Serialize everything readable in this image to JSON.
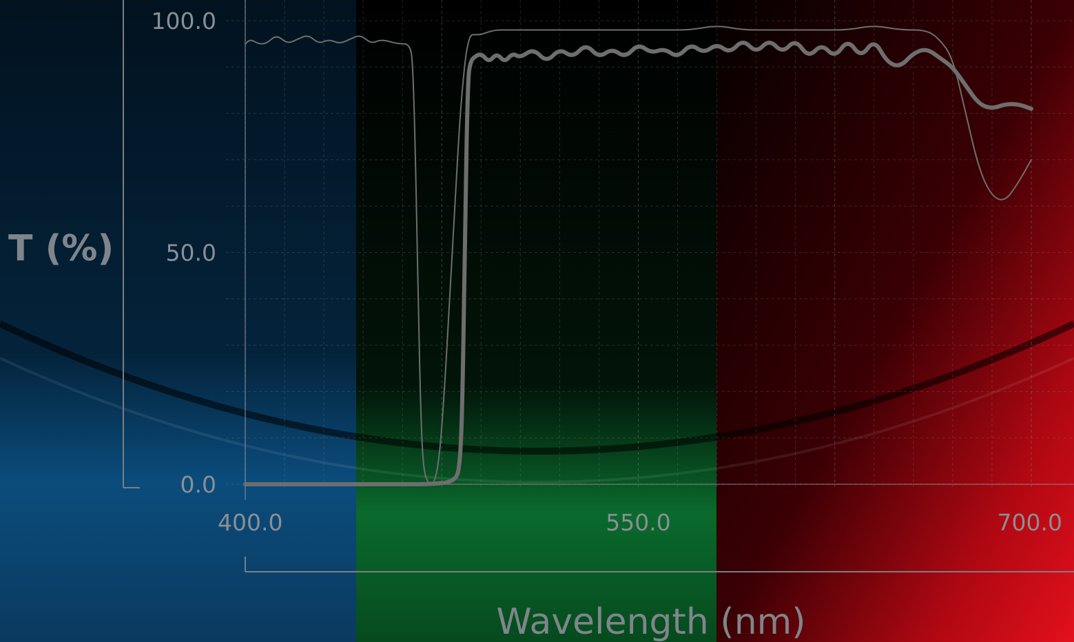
{
  "chart_data": {
    "type": "line",
    "xlabel": "Wavelength (nm)",
    "ylabel": "T (%)",
    "xlim": [
      400.0,
      700.0
    ],
    "ylim": [
      0.0,
      100.0
    ],
    "x_ticks": [
      "400.0",
      "550.0",
      "700.0"
    ],
    "y_ticks": [
      "0.0",
      "50.0",
      "100.0"
    ],
    "grid": true,
    "bands": [
      {
        "name": "blue",
        "from": 400,
        "to": 442,
        "color": "#0a4a78"
      },
      {
        "name": "green",
        "from": 442,
        "to": 580,
        "color": "#0a6a30"
      },
      {
        "name": "red",
        "from": 580,
        "to": 700,
        "color": "#c0101a"
      }
    ],
    "series": [
      {
        "style": "thin",
        "color": "#6e6e6e",
        "x": [
          400,
          402,
          405,
          408,
          412,
          416,
          420,
          424,
          428,
          432,
          436,
          440,
          444,
          448,
          452,
          458,
          463,
          464,
          465,
          466,
          467,
          468,
          470,
          472,
          474,
          476,
          478,
          480,
          482,
          484,
          485,
          486,
          488,
          490,
          495,
          500,
          510,
          520,
          530,
          540,
          550,
          560,
          570,
          580,
          590,
          600,
          610,
          620,
          630,
          640,
          650,
          660,
          665,
          670,
          675,
          680,
          685,
          690,
          695,
          700
        ],
        "y": [
          95,
          96,
          95,
          95,
          97,
          95,
          96,
          97,
          95,
          96,
          95,
          96,
          97,
          95,
          96,
          95,
          95,
          90,
          70,
          40,
          15,
          3,
          0,
          0,
          5,
          20,
          40,
          60,
          80,
          92,
          95,
          97,
          97,
          97,
          98,
          98,
          98,
          98,
          98,
          98,
          98,
          98,
          98,
          99,
          98,
          98,
          98,
          98,
          98,
          99,
          98,
          98,
          96,
          92,
          80,
          68,
          62,
          61,
          65,
          70
        ]
      },
      {
        "style": "thick",
        "color": "#6e6e6e",
        "x": [
          400,
          420,
          440,
          460,
          470,
          480,
          482,
          483,
          484,
          485,
          486,
          487,
          490,
          493,
          496,
          499,
          502,
          505,
          510,
          515,
          520,
          525,
          530,
          535,
          540,
          545,
          550,
          555,
          560,
          565,
          570,
          575,
          580,
          585,
          590,
          595,
          600,
          605,
          610,
          615,
          620,
          625,
          630,
          635,
          640,
          645,
          650,
          655,
          660,
          665,
          670,
          675,
          680,
          685,
          690,
          695,
          700
        ],
        "y": [
          0,
          0,
          0,
          0,
          0,
          0.5,
          4,
          20,
          60,
          88,
          91,
          92,
          93,
          91,
          93,
          91,
          93,
          92,
          94,
          91,
          94,
          92,
          95,
          92,
          94,
          92,
          95,
          93,
          94,
          92,
          95,
          93,
          95,
          93,
          96,
          93,
          96,
          93,
          96,
          92,
          95,
          92,
          96,
          92,
          96,
          91,
          90,
          93,
          94,
          92,
          90,
          86,
          82,
          81,
          82,
          82,
          81
        ]
      }
    ]
  }
}
